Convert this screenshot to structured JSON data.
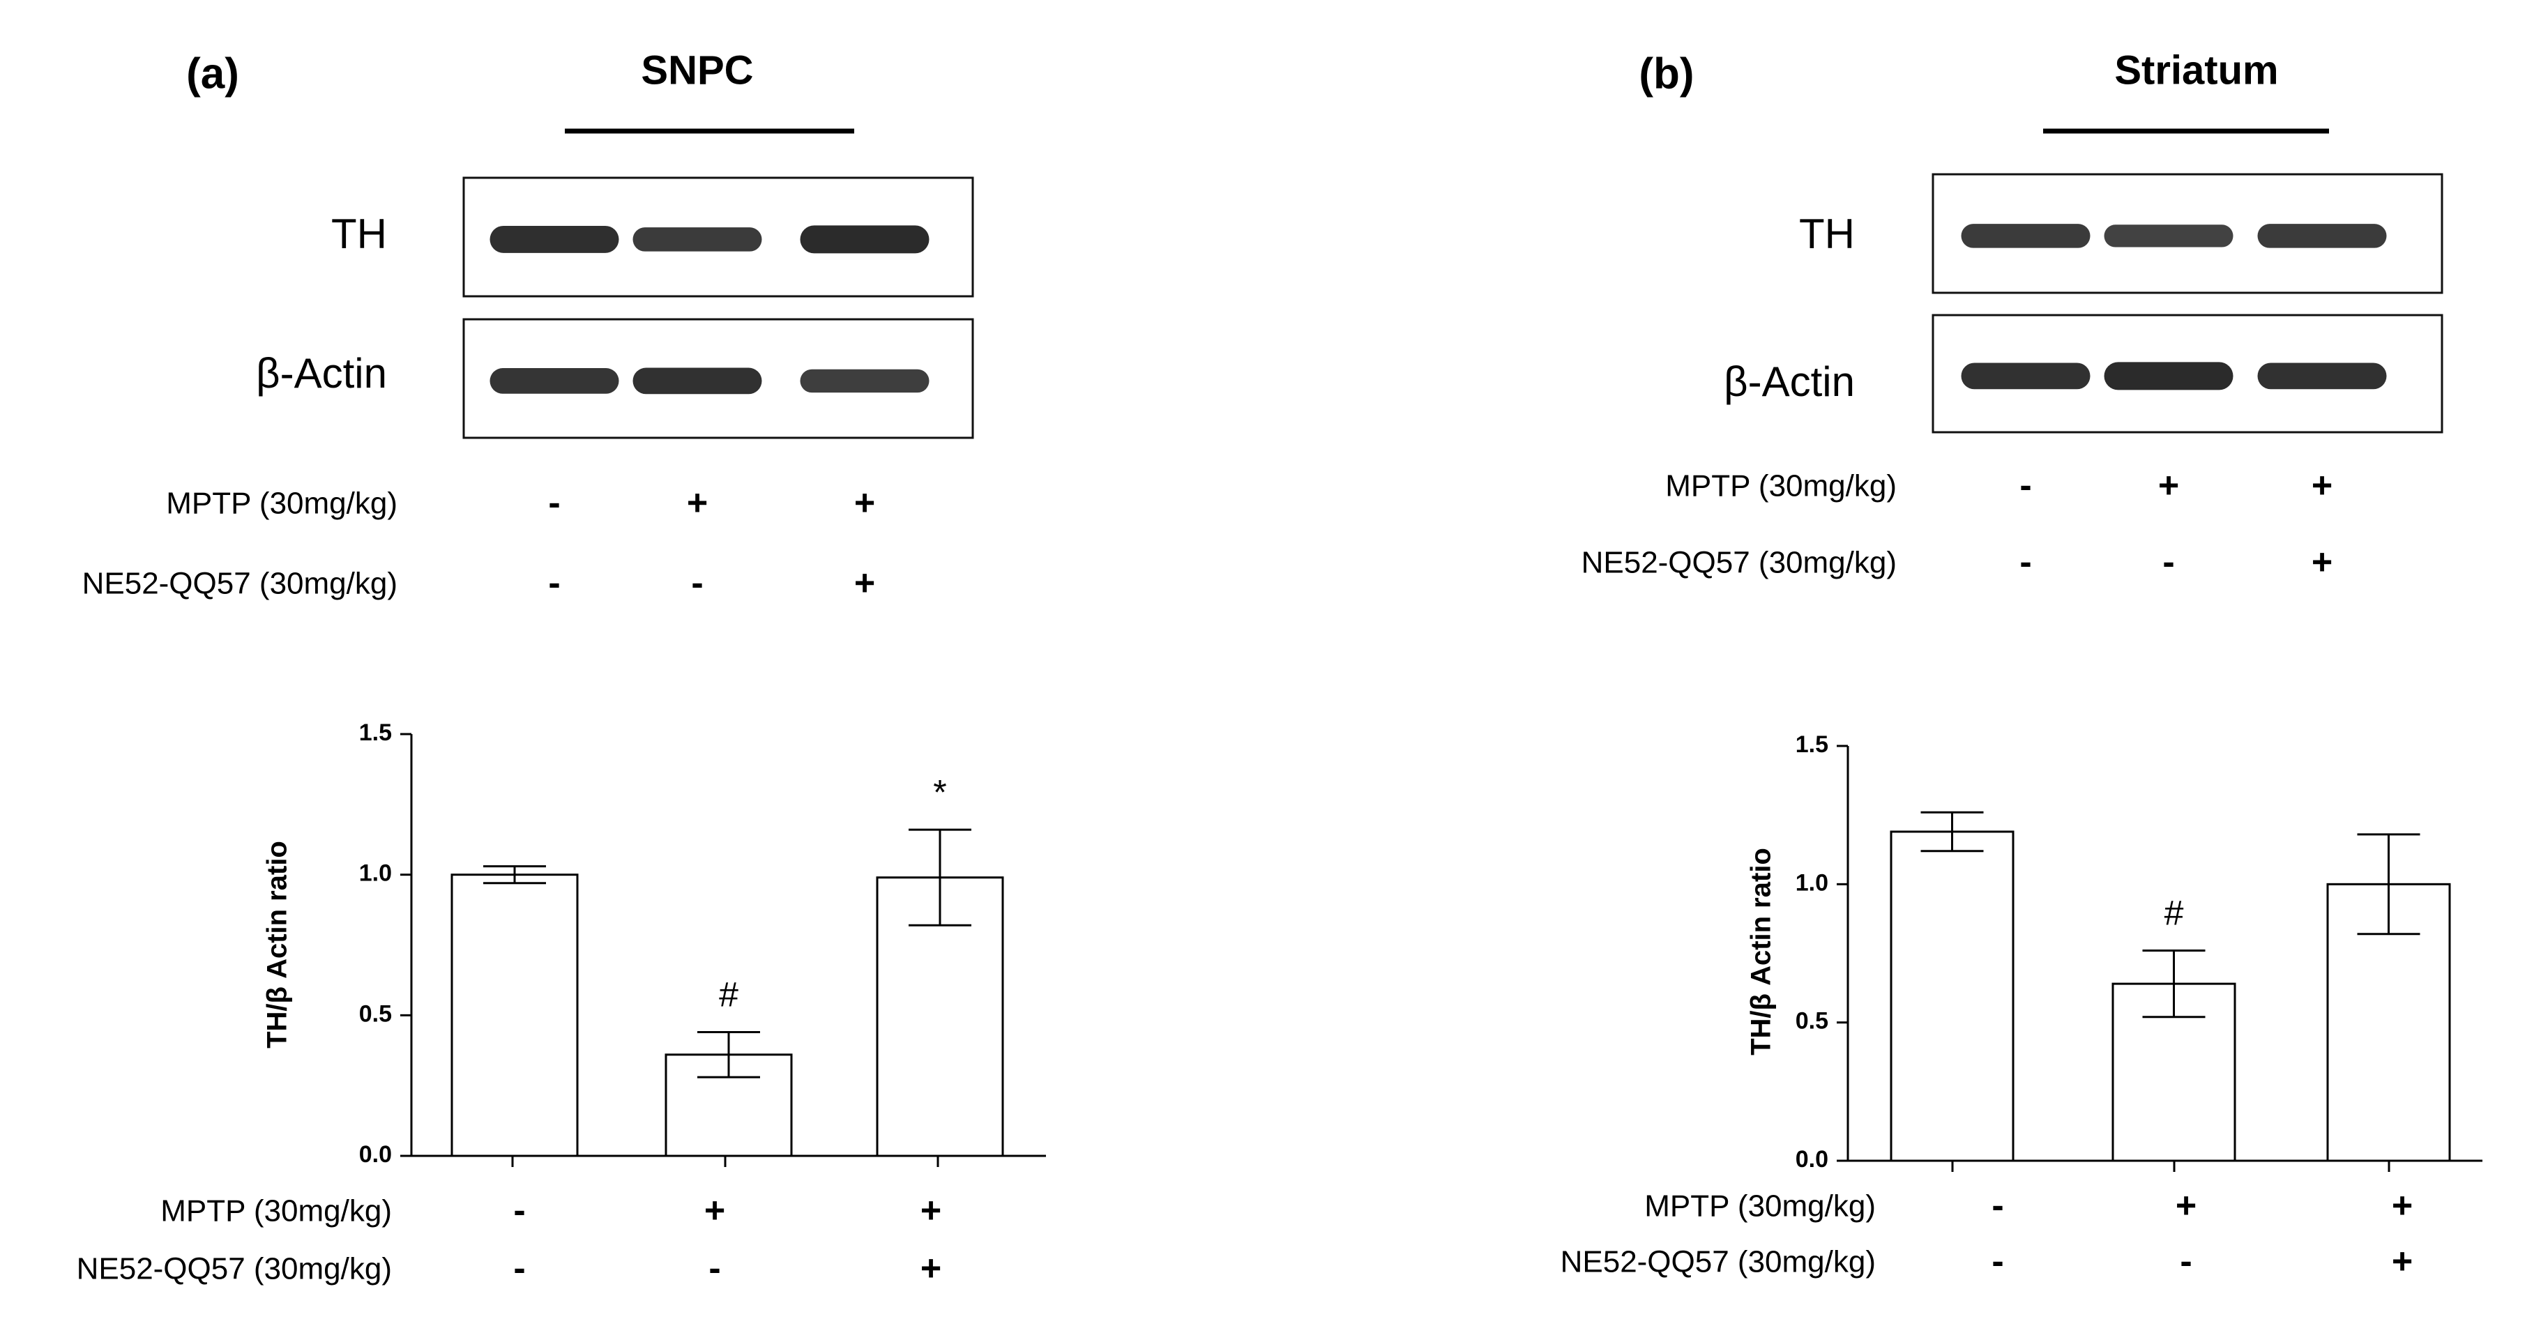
{
  "panels": [
    {
      "id": "a",
      "letter": "(a)",
      "region": "SNPC",
      "blot_labels": [
        "TH",
        "β-Actin"
      ],
      "blot_treatments": [
        {
          "label": "MPTP (30mg/kg)",
          "signs": [
            "-",
            "+",
            "+"
          ]
        },
        {
          "label": "NE52-QQ57 (30mg/kg)",
          "signs": [
            "-",
            "-",
            "+"
          ]
        }
      ],
      "chart_treatments": [
        {
          "label": "MPTP (30mg/kg)",
          "signs": [
            "-",
            "+",
            "+"
          ]
        },
        {
          "label": "NE52-QQ57 (30mg/kg)",
          "signs": [
            "-",
            "-",
            "+"
          ]
        }
      ],
      "bands": {
        "TH": [
          0.95,
          0.75,
          1.0
        ],
        "β-Actin": [
          0.85,
          0.9,
          0.7
        ]
      }
    },
    {
      "id": "b",
      "letter": "(b)",
      "region": "Striatum",
      "blot_labels": [
        "TH",
        "β-Actin"
      ],
      "blot_treatments": [
        {
          "label": "MPTP (30mg/kg)",
          "signs": [
            "-",
            "+",
            "+"
          ]
        },
        {
          "label": "NE52-QQ57 (30mg/kg)",
          "signs": [
            "-",
            "-",
            "+"
          ]
        }
      ],
      "chart_treatments": [
        {
          "label": "MPTP (30mg/kg)",
          "signs": [
            "-",
            "+",
            "+"
          ]
        },
        {
          "label": "NE52-QQ57 (30mg/kg)",
          "signs": [
            "-",
            "-",
            "+"
          ]
        }
      ],
      "bands": {
        "TH": [
          0.75,
          0.65,
          0.75
        ],
        "β-Actin": [
          0.9,
          1.0,
          0.9
        ]
      }
    }
  ],
  "chart_data": [
    {
      "type": "bar",
      "panel": "a",
      "title": "",
      "xlabel": "",
      "ylabel": "TH/β Actin ratio",
      "ylim": [
        0,
        1.5
      ],
      "yticks": [
        "0.0",
        "0.5",
        "1.0",
        "1.5"
      ],
      "categories": [
        "-/-",
        "+/-",
        "+/+"
      ],
      "values": [
        1.0,
        0.36,
        0.99
      ],
      "errors": [
        0.03,
        0.08,
        0.17
      ],
      "annotations": [
        "",
        "#",
        "*"
      ],
      "grid": false,
      "bar_color": "#ffffff",
      "edge_color": "#000000"
    },
    {
      "type": "bar",
      "panel": "b",
      "title": "",
      "xlabel": "",
      "ylabel": "TH/β Actin ratio",
      "ylim": [
        0,
        1.5
      ],
      "yticks": [
        "0.0",
        "0.5",
        "1.0",
        "1.5"
      ],
      "categories": [
        "-/-",
        "+/-",
        "+/+"
      ],
      "values": [
        1.19,
        0.64,
        1.0
      ],
      "errors": [
        0.07,
        0.12,
        0.18
      ],
      "annotations": [
        "",
        "#",
        ""
      ],
      "grid": false,
      "bar_color": "#ffffff",
      "edge_color": "#000000"
    }
  ]
}
